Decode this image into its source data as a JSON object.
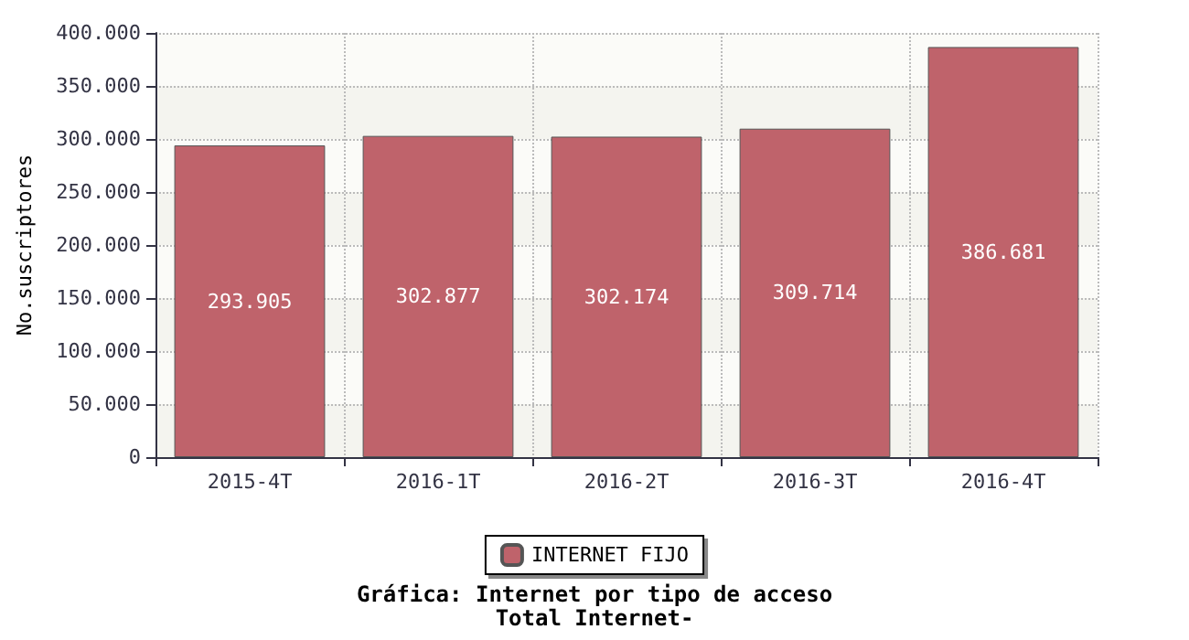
{
  "chart_data": {
    "type": "bar",
    "title": "Gráfica: Internet por tipo de acceso",
    "subtitle": "Total Internet-",
    "ylabel": "No.suscriptores",
    "categories": [
      "2015-4T",
      "2016-1T",
      "2016-2T",
      "2016-3T",
      "2016-4T"
    ],
    "series": [
      {
        "name": "INTERNET FIJO",
        "color": "#bf636b",
        "values": [
          293905,
          302877,
          302174,
          309714,
          386681
        ],
        "value_labels": [
          "293.905",
          "302.877",
          "302.174",
          "309.714",
          "386.681"
        ]
      }
    ],
    "ylim": [
      0,
      400000
    ],
    "yticks": [
      0,
      {
        "value": 50000,
        "label": "50.000"
      },
      {
        "value": 100000,
        "label": "100.000"
      },
      {
        "value": 150000,
        "label": "150.000"
      },
      {
        "value": 200000,
        "label": "200.000"
      },
      {
        "value": 250000,
        "label": "250.000"
      },
      {
        "value": 300000,
        "label": "300.000"
      },
      {
        "value": 350000,
        "label": "350.000"
      },
      {
        "value": 400000,
        "label": "400.000"
      }
    ],
    "grid": true,
    "legend": "bottom"
  }
}
